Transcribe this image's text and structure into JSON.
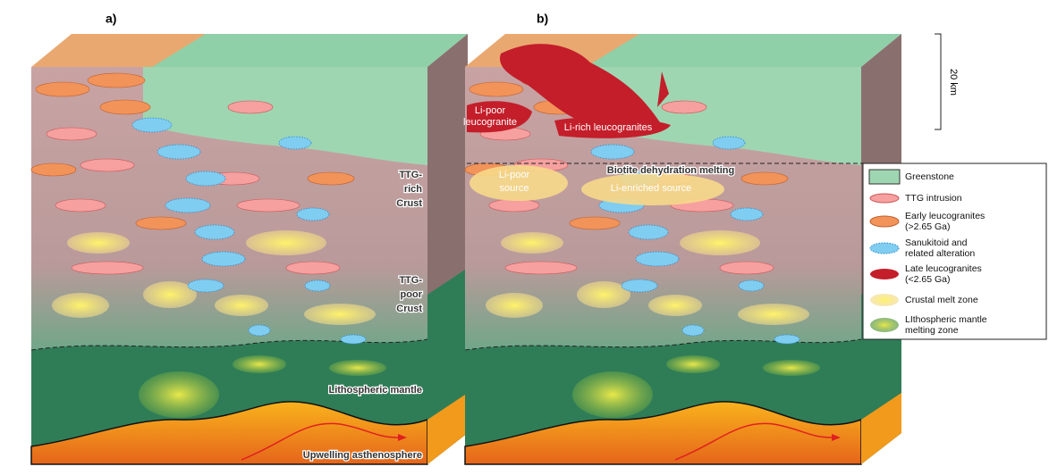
{
  "panel_a": {
    "label": "a)",
    "crust_upper": [
      "TTG-",
      "rich",
      "Crust"
    ],
    "crust_lower": [
      "TTG-",
      "poor",
      "Crust"
    ],
    "mantle": "Lithospheric mantle",
    "asthenosphere": "Upwelling asthenosphere"
  },
  "panel_b": {
    "label": "b)",
    "li_poor_leucogranite": [
      "Li-poor",
      "leucogranite"
    ],
    "li_rich_leucogranites": "Li-rich leucogranites",
    "li_poor_source": [
      "Li-poor",
      "source"
    ],
    "melting": "Biotite dehydration melting",
    "li_enriched_source": "Li-enriched source"
  },
  "scale": "20 km",
  "legend": [
    {
      "label": [
        "Greenstone"
      ]
    },
    {
      "label": [
        "TTG intrusion"
      ]
    },
    {
      "label": [
        "Early leucogranites",
        "(>2.65 Ga)"
      ]
    },
    {
      "label": [
        "Sanukitoid and",
        "related alteration"
      ]
    },
    {
      "label": [
        "Late leucogranites",
        "(<2.65 Ga)"
      ]
    },
    {
      "label": [
        "Crustal melt zone"
      ]
    },
    {
      "label": [
        "LIthospheric mantle",
        "melting zone"
      ]
    }
  ]
}
